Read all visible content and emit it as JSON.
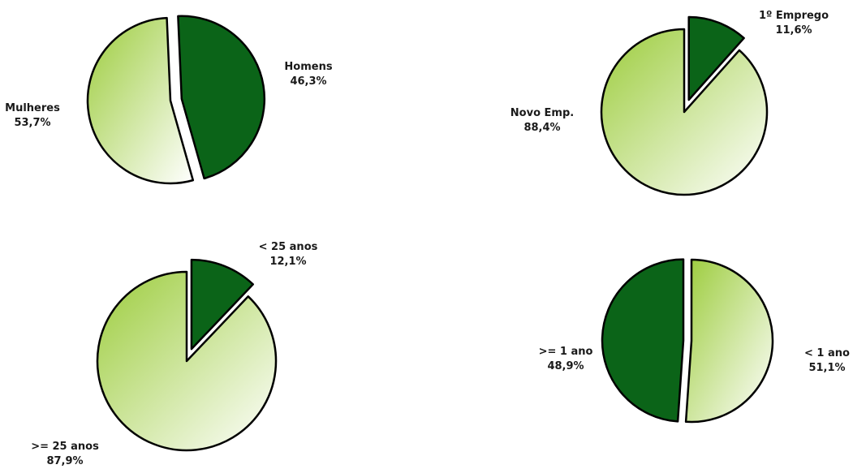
{
  "colors": {
    "dark_slice": "#0b6418",
    "light_start": "#9ccc3c",
    "light_end": "#ffffff",
    "outline": "#000000"
  },
  "chart_data": [
    {
      "type": "pie",
      "slices": [
        {
          "label": "Homens",
          "value": 46.3,
          "value_text": "46,3%",
          "style": "dark",
          "exploded": false
        },
        {
          "label": "Mulheres",
          "value": 53.7,
          "value_text": "53,7%",
          "style": "light",
          "exploded": false
        }
      ]
    },
    {
      "type": "pie",
      "slices": [
        {
          "label": "1º Emprego",
          "value": 11.6,
          "value_text": "11,6%",
          "style": "dark",
          "exploded": true
        },
        {
          "label": "Novo Emp.",
          "value": 88.4,
          "value_text": "88,4%",
          "style": "light",
          "exploded": false
        }
      ]
    },
    {
      "type": "pie",
      "slices": [
        {
          "label": "< 25 anos",
          "value": 12.1,
          "value_text": "12,1%",
          "style": "dark",
          "exploded": true
        },
        {
          "label": ">= 25 anos",
          "value": 87.9,
          "value_text": "87,9%",
          "style": "light",
          "exploded": false
        }
      ]
    },
    {
      "type": "pie",
      "slices": [
        {
          "label": "< 1 ano",
          "value": 51.1,
          "value_text": "51,1%",
          "style": "light",
          "exploded": false
        },
        {
          "label": ">= 1 ano",
          "value": 48.9,
          "value_text": "48,9%",
          "style": "dark",
          "exploded": false
        }
      ]
    }
  ]
}
